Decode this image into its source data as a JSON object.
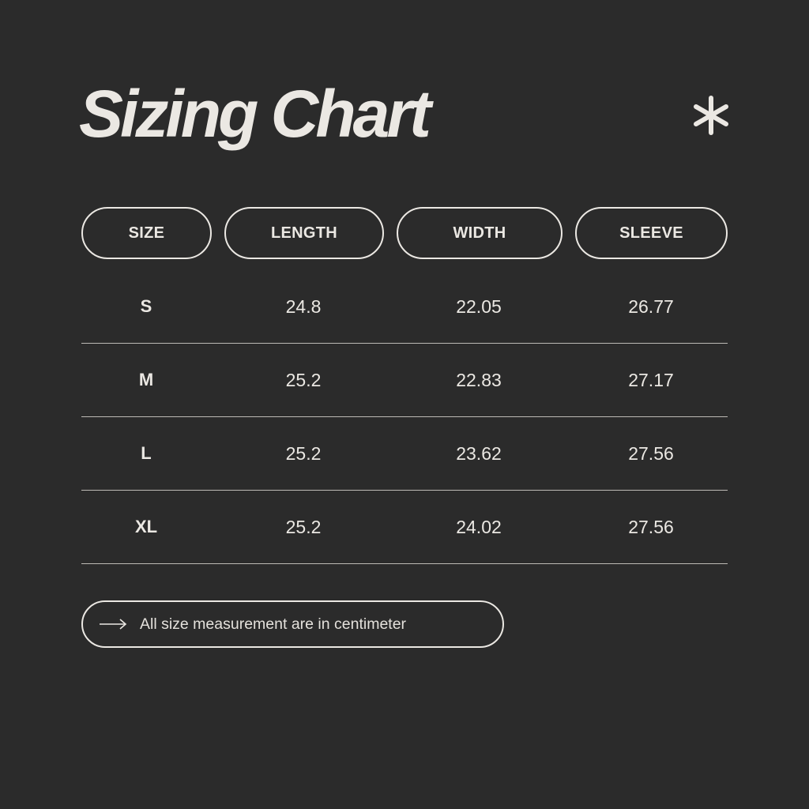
{
  "title": "Sizing Chart",
  "decoration_icon": "asterisk-icon",
  "colors": {
    "background": "#2b2b2b",
    "foreground": "#ebe8e3"
  },
  "table": {
    "headers": [
      "SIZE",
      "LENGTH",
      "WIDTH",
      "SLEEVE"
    ],
    "rows": [
      [
        "S",
        "24.8",
        "22.05",
        "26.77"
      ],
      [
        "M",
        "25.2",
        "22.83",
        "27.17"
      ],
      [
        "L",
        "25.2",
        "23.62",
        "27.56"
      ],
      [
        "XL",
        "25.2",
        "24.02",
        "27.56"
      ]
    ]
  },
  "note": {
    "icon": "arrow-right-icon",
    "text": "All size measurement are in centimeter"
  }
}
